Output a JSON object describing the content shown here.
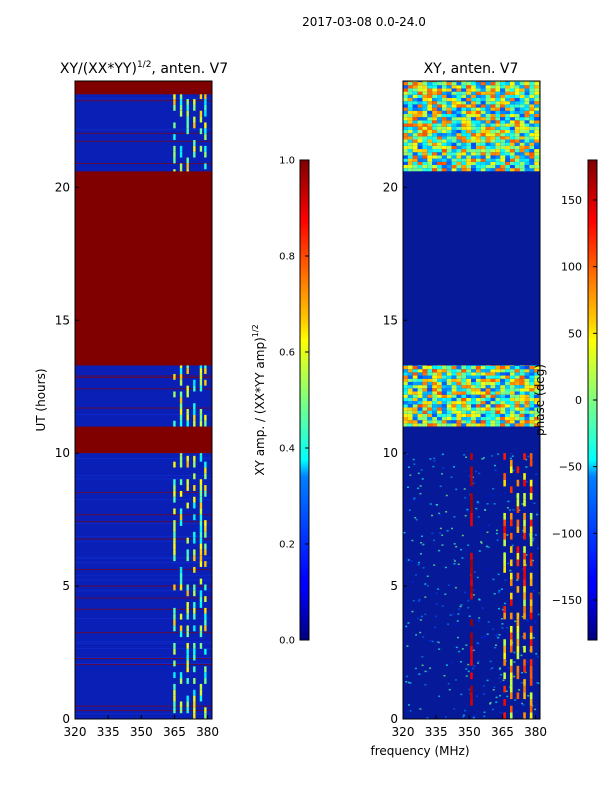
{
  "figure_title": "2017-03-08 0.0-24.0",
  "shared_xlabel": "frequency (MHz)",
  "colors": {
    "saturated": "#800000",
    "background_amp": "#0a1fb5",
    "background_phase": "#061a99",
    "bright_patch": "#f4ff4a"
  },
  "chart_data": [
    {
      "type": "heatmap",
      "title_main": "XY/(XX*YY)",
      "title_sup": "1/2",
      "title_tail": ", anten. V7",
      "xlabel": "",
      "ylabel": "UT (hours)",
      "xlim": [
        320,
        382
      ],
      "ylim": [
        0,
        24
      ],
      "xticks": [
        320,
        335,
        350,
        365,
        380
      ],
      "yticks": [
        0,
        5,
        10,
        15,
        20
      ],
      "colormap": "jet",
      "saturated_bands_hours": [
        [
          10.0,
          11.0
        ],
        [
          13.3,
          20.6
        ],
        [
          23.5,
          24.0
        ]
      ],
      "rfi_columns_mhz": [
        365,
        368,
        371,
        374,
        377,
        379
      ],
      "colorbar": {
        "label_main": "XY amp. / (XX*YY amp)",
        "label_sup": "1/2",
        "range": [
          0.0,
          1.0
        ],
        "ticks": [
          "0.0",
          "0.2",
          "0.4",
          "0.6",
          "0.8",
          "1.0"
        ]
      }
    },
    {
      "type": "heatmap",
      "title": "XY, anten. V7",
      "xlabel": "",
      "ylabel": "",
      "xlim": [
        320,
        382
      ],
      "ylim": [
        0,
        24
      ],
      "xticks": [
        320,
        335,
        350,
        365,
        380
      ],
      "yticks": [
        0,
        5,
        10,
        15,
        20
      ],
      "colormap": "jet",
      "flagged_bands_hours": [
        [
          10.0,
          11.0
        ],
        [
          13.3,
          20.6
        ]
      ],
      "active_bands_hours": [
        [
          11.0,
          13.3
        ],
        [
          20.6,
          24.0
        ]
      ],
      "rfi_columns_mhz": [
        351,
        366,
        369,
        372,
        375,
        378
      ],
      "colorbar": {
        "label": "phase (deg)",
        "range": [
          -180,
          180
        ],
        "ticks": [
          "150",
          "100",
          "50",
          "0",
          "−50",
          "−100",
          "−150"
        ],
        "tick_values": [
          150,
          100,
          50,
          0,
          -50,
          -100,
          -150
        ]
      }
    }
  ]
}
